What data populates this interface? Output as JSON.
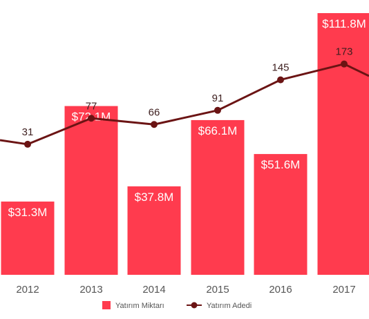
{
  "chart_data": {
    "type": "bar",
    "categories": [
      "2012",
      "2013",
      "2014",
      "2015",
      "2016",
      "2017"
    ],
    "series": [
      {
        "name": "Yatırım Miktarı",
        "kind": "bar",
        "values": [
          31.3,
          72.1,
          37.8,
          66.1,
          51.6,
          111.8
        ],
        "labels": [
          "$31.3M",
          "$72.1M",
          "$37.8M",
          "$66.1M",
          "$51.6M",
          "$111.8M"
        ],
        "color": "#ff3b4e"
      },
      {
        "name": "Yatırım Adedi",
        "kind": "line",
        "values": [
          31,
          77,
          66,
          91,
          145,
          173
        ],
        "labels": [
          "31",
          "77",
          "66",
          "91",
          "145",
          "173"
        ],
        "color": "#6b1414"
      }
    ],
    "legend_position": "bottom",
    "grid": false
  }
}
